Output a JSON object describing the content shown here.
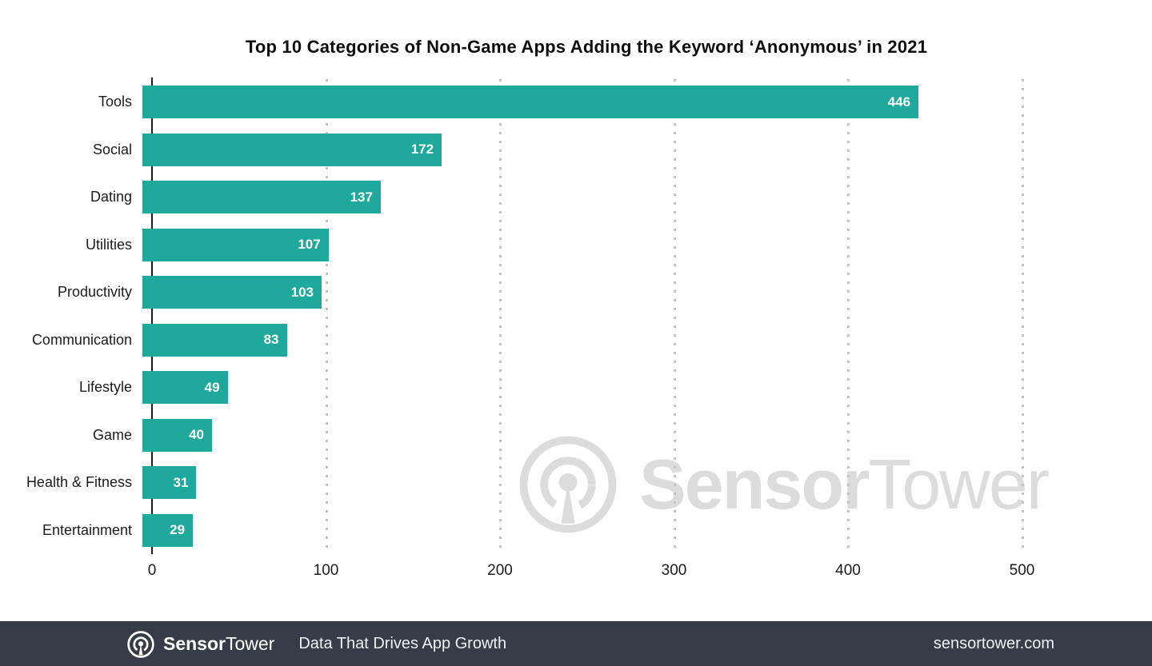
{
  "title": "Top 10 Categories of Non-Game Apps Adding the Keyword ‘Anonymous’ in 2021",
  "chart_data": {
    "type": "bar",
    "orientation": "horizontal",
    "title": "Top 10 Categories of Non-Game Apps Adding the Keyword ‘Anonymous’ in 2021",
    "categories": [
      "Tools",
      "Social",
      "Dating",
      "Utilities",
      "Productivity",
      "Communication",
      "Lifestyle",
      "Game",
      "Health & Fitness",
      "Entertainment"
    ],
    "values": [
      446,
      172,
      137,
      107,
      103,
      83,
      49,
      40,
      31,
      29
    ],
    "xlabel": "",
    "ylabel": "",
    "x_ticks": [
      0,
      100,
      200,
      300,
      400,
      500
    ],
    "xlim": [
      0,
      550
    ],
    "grid": "vertical-dotted",
    "value_labels": "inside-end-white",
    "bar_color": "#1fa99c",
    "gridline_color": "#c3c3c3",
    "axis_color": "#1b1b1b"
  },
  "watermark": {
    "icon": "sensortower-logo-icon",
    "brand_bold": "Sensor",
    "brand_light": "Tower",
    "color": "#dcdcdc"
  },
  "footer": {
    "icon": "sensortower-logo-icon",
    "brand_bold": "Sensor",
    "brand_light": "Tower",
    "tagline": "Data That Drives App Growth",
    "website": "sensortower.com",
    "bg_color": "#363d48"
  }
}
